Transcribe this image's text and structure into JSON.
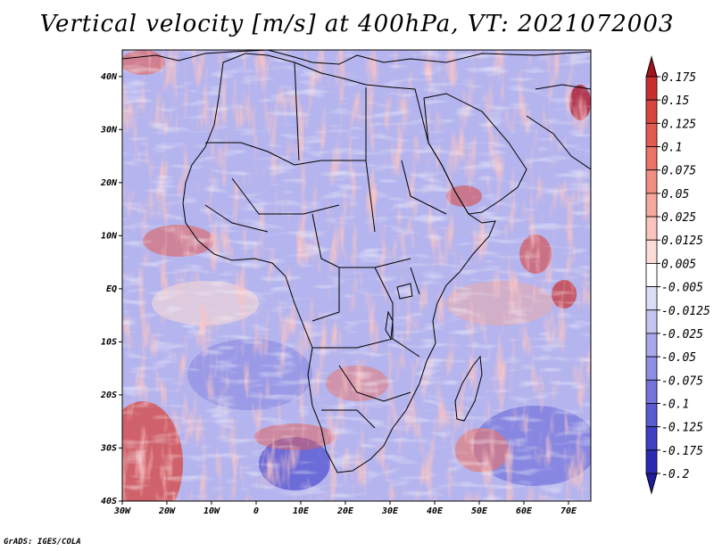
{
  "title": "Vertical velocity [m/s] at 400hPa, VT: 2021072003",
  "credit": "GrADS: IGES/COLA",
  "map": {
    "lon_range": [
      -30,
      75
    ],
    "lat_range": [
      -40,
      45
    ],
    "lat_ticks": [
      {
        "value": 40,
        "label": "40N"
      },
      {
        "value": 30,
        "label": "30N"
      },
      {
        "value": 20,
        "label": "20N"
      },
      {
        "value": 10,
        "label": "10N"
      },
      {
        "value": 0,
        "label": "EQ"
      },
      {
        "value": -10,
        "label": "10S"
      },
      {
        "value": -20,
        "label": "20S"
      },
      {
        "value": -30,
        "label": "30S"
      },
      {
        "value": -40,
        "label": "40S"
      }
    ],
    "lon_ticks": [
      {
        "value": -30,
        "label": "30W"
      },
      {
        "value": -20,
        "label": "20W"
      },
      {
        "value": -10,
        "label": "10W"
      },
      {
        "value": 0,
        "label": "0"
      },
      {
        "value": 10,
        "label": "10E"
      },
      {
        "value": 20,
        "label": "20E"
      },
      {
        "value": 30,
        "label": "30E"
      },
      {
        "value": 40,
        "label": "40E"
      },
      {
        "value": 50,
        "label": "50E"
      },
      {
        "value": 60,
        "label": "60E"
      },
      {
        "value": 70,
        "label": "70E"
      }
    ]
  },
  "colorbar": {
    "levels": [
      {
        "label": "0.175",
        "color": "#b0192a"
      },
      {
        "label": "0.15",
        "color": "#c8302f"
      },
      {
        "label": "0.125",
        "color": "#d8453f"
      },
      {
        "label": "0.1",
        "color": "#e25b52"
      },
      {
        "label": "0.075",
        "color": "#ea7468"
      },
      {
        "label": "0.05",
        "color": "#f08e82"
      },
      {
        "label": "0.025",
        "color": "#f5a89c"
      },
      {
        "label": "0.0125",
        "color": "#f9c4bb"
      },
      {
        "label": "0.005",
        "color": "#fcdcd6"
      },
      {
        "label": "-0.005",
        "color": "#ffffff"
      },
      {
        "label": "-0.0125",
        "color": "#dcdcf6"
      },
      {
        "label": "-0.025",
        "color": "#c4c4f0"
      },
      {
        "label": "-0.05",
        "color": "#a8a8ea"
      },
      {
        "label": "-0.075",
        "color": "#8e8ee4"
      },
      {
        "label": "-0.1",
        "color": "#7474dc"
      },
      {
        "label": "-0.125",
        "color": "#5a5ad2"
      },
      {
        "label": "-0.175",
        "color": "#3f3fc4"
      },
      {
        "label": "-0.2",
        "color": "#2a2ab2"
      }
    ],
    "top_arrow_color": "#a0141f",
    "bottom_arrow_color": "#1d1da0"
  }
}
